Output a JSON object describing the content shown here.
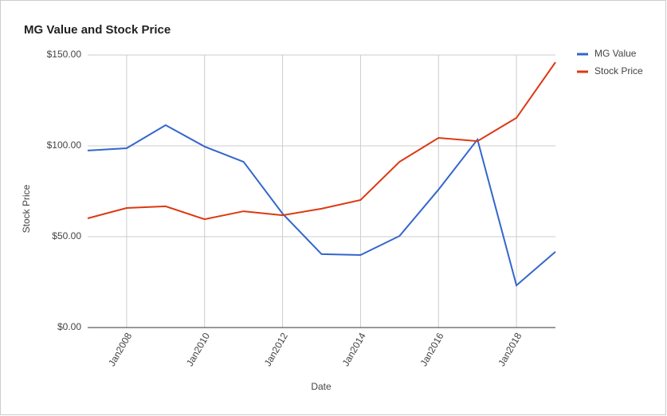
{
  "chart_data": {
    "type": "line",
    "title": "MG Value and Stock Price",
    "x": [
      2007,
      2008,
      2009,
      2010,
      2011,
      2012,
      2013,
      2014,
      2015,
      2016,
      2017,
      2018,
      2019
    ],
    "series": [
      {
        "name": "MG Value",
        "color": "#3366cc",
        "values": [
          97.4,
          98.7,
          111.4,
          99.6,
          91.2,
          62.7,
          40.4,
          39.9,
          50.4,
          75.9,
          103.5,
          23.2,
          41.7
        ]
      },
      {
        "name": "Stock Price",
        "color": "#dc3912",
        "values": [
          60.1,
          65.8,
          66.7,
          59.6,
          64.0,
          61.8,
          65.4,
          70.2,
          91.2,
          104.4,
          102.6,
          115.4,
          146
        ]
      }
    ],
    "xlim": [
      2007,
      2019
    ],
    "xticks": [
      {
        "value": 2008,
        "label": "Jan2008"
      },
      {
        "value": 2010,
        "label": "Jan2010"
      },
      {
        "value": 2012,
        "label": "Jan2012"
      },
      {
        "value": 2014,
        "label": "Jan2014"
      },
      {
        "value": 2016,
        "label": "Jan2016"
      },
      {
        "value": 2018,
        "label": "Jan2018"
      }
    ],
    "ylim": [
      0,
      150
    ],
    "yticks": [
      {
        "value": 0,
        "label": "$0.00"
      },
      {
        "value": 50,
        "label": "$50.00"
      },
      {
        "value": 100,
        "label": "$100.00"
      },
      {
        "value": 150,
        "label": "$150.00"
      }
    ],
    "xlabel": "Date",
    "ylabel": "Stock Price",
    "grid": true,
    "legend": "right"
  }
}
